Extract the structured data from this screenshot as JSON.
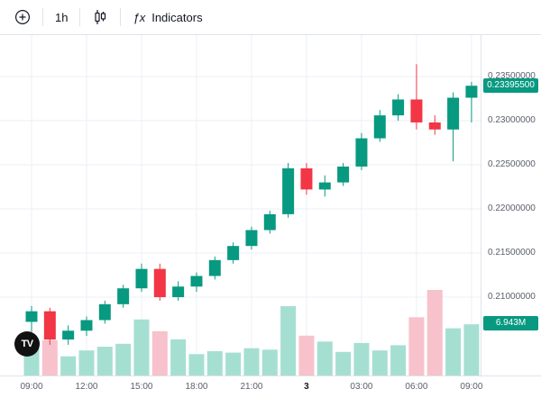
{
  "toolbar": {
    "interval_label": "1h",
    "fx_label": "ƒx",
    "indicators_label": "Indicators"
  },
  "logo": {
    "text": "TV"
  },
  "price_axis": {
    "labels": [
      {
        "text": "0.23500000",
        "price": 0.235
      },
      {
        "text": "0.23000000",
        "price": 0.23
      },
      {
        "text": "0.22500000",
        "price": 0.225
      },
      {
        "text": "0.22000000",
        "price": 0.22
      },
      {
        "text": "0.21500000",
        "price": 0.215
      },
      {
        "text": "0.21000000",
        "price": 0.21
      }
    ],
    "current_badge": {
      "text": "0.23395500",
      "price": 0.233955,
      "color": "#089981"
    },
    "volume_badge": {
      "text": "6.943M",
      "color": "#089981"
    }
  },
  "time_axis": {
    "labels": [
      {
        "text": "09:00",
        "index": 0
      },
      {
        "text": "12:00",
        "index": 3
      },
      {
        "text": "15:00",
        "index": 6
      },
      {
        "text": "18:00",
        "index": 9
      },
      {
        "text": "21:00",
        "index": 12
      },
      {
        "text": "3",
        "index": 15,
        "emphasis": true
      },
      {
        "text": "03:00",
        "index": 18
      },
      {
        "text": "06:00",
        "index": 21
      },
      {
        "text": "09:00",
        "index": 24
      }
    ]
  },
  "chart_data": {
    "type": "candlestick",
    "interval": "1h",
    "ylim": [
      0.204,
      0.2375
    ],
    "grid": true,
    "legend_position": "none",
    "volume_unit": "M",
    "last_price": "0.23395500",
    "last_volume": "6.943M",
    "colors": {
      "up": "#089981",
      "down": "#f23645",
      "vol_up": "#a5dfd2",
      "vol_down": "#f7c2cb",
      "grid": "#eceff5"
    },
    "candles": [
      {
        "t": "09:00",
        "o": 0.2072,
        "h": 0.209,
        "l": 0.206,
        "c": 0.2084,
        "v": 4.1
      },
      {
        "t": "10:00",
        "o": 0.2084,
        "h": 0.2088,
        "l": 0.2046,
        "c": 0.2052,
        "v": 4.8
      },
      {
        "t": "11:00",
        "o": 0.2052,
        "h": 0.2068,
        "l": 0.2046,
        "c": 0.2062,
        "v": 2.6
      },
      {
        "t": "12:00",
        "o": 0.2062,
        "h": 0.2078,
        "l": 0.2056,
        "c": 0.2074,
        "v": 3.4
      },
      {
        "t": "13:00",
        "o": 0.2074,
        "h": 0.2096,
        "l": 0.207,
        "c": 0.2092,
        "v": 3.9
      },
      {
        "t": "14:00",
        "o": 0.2092,
        "h": 0.2114,
        "l": 0.2088,
        "c": 0.211,
        "v": 4.3
      },
      {
        "t": "15:00",
        "o": 0.211,
        "h": 0.2138,
        "l": 0.2106,
        "c": 0.2132,
        "v": 7.6
      },
      {
        "t": "16:00",
        "o": 0.2132,
        "h": 0.2138,
        "l": 0.2096,
        "c": 0.21,
        "v": 6.0
      },
      {
        "t": "17:00",
        "o": 0.21,
        "h": 0.2118,
        "l": 0.2096,
        "c": 0.2112,
        "v": 4.9
      },
      {
        "t": "18:00",
        "o": 0.2112,
        "h": 0.2128,
        "l": 0.2106,
        "c": 0.2124,
        "v": 2.9
      },
      {
        "t": "19:00",
        "o": 0.2124,
        "h": 0.2146,
        "l": 0.212,
        "c": 0.2142,
        "v": 3.3
      },
      {
        "t": "20:00",
        "o": 0.2142,
        "h": 0.2162,
        "l": 0.2138,
        "c": 0.2158,
        "v": 3.1
      },
      {
        "t": "21:00",
        "o": 0.2158,
        "h": 0.218,
        "l": 0.2154,
        "c": 0.2176,
        "v": 3.7
      },
      {
        "t": "22:00",
        "o": 0.2176,
        "h": 0.2198,
        "l": 0.2172,
        "c": 0.2194,
        "v": 3.5
      },
      {
        "t": "23:00",
        "o": 0.2194,
        "h": 0.2252,
        "l": 0.219,
        "c": 0.2246,
        "v": 9.4
      },
      {
        "t": "00:00",
        "o": 0.2246,
        "h": 0.2252,
        "l": 0.2216,
        "c": 0.2222,
        "v": 5.4
      },
      {
        "t": "01:00",
        "o": 0.2222,
        "h": 0.2238,
        "l": 0.2214,
        "c": 0.223,
        "v": 4.6
      },
      {
        "t": "02:00",
        "o": 0.223,
        "h": 0.2252,
        "l": 0.2226,
        "c": 0.2248,
        "v": 3.2
      },
      {
        "t": "03:00",
        "o": 0.2248,
        "h": 0.2286,
        "l": 0.2244,
        "c": 0.228,
        "v": 4.4
      },
      {
        "t": "04:00",
        "o": 0.228,
        "h": 0.2312,
        "l": 0.2276,
        "c": 0.2306,
        "v": 3.4
      },
      {
        "t": "05:00",
        "o": 0.2306,
        "h": 0.233,
        "l": 0.23,
        "c": 0.2324,
        "v": 4.1
      },
      {
        "t": "06:00",
        "o": 0.2324,
        "h": 0.2364,
        "l": 0.229,
        "c": 0.2298,
        "v": 7.9
      },
      {
        "t": "07:00",
        "o": 0.2298,
        "h": 0.2306,
        "l": 0.2284,
        "c": 0.229,
        "v": 11.6
      },
      {
        "t": "08:00",
        "o": 0.229,
        "h": 0.2332,
        "l": 0.2254,
        "c": 0.2326,
        "v": 6.4
      },
      {
        "t": "09:00",
        "o": 0.2326,
        "h": 0.2344,
        "l": 0.2298,
        "c": 0.233955,
        "v": 6.943
      }
    ]
  }
}
